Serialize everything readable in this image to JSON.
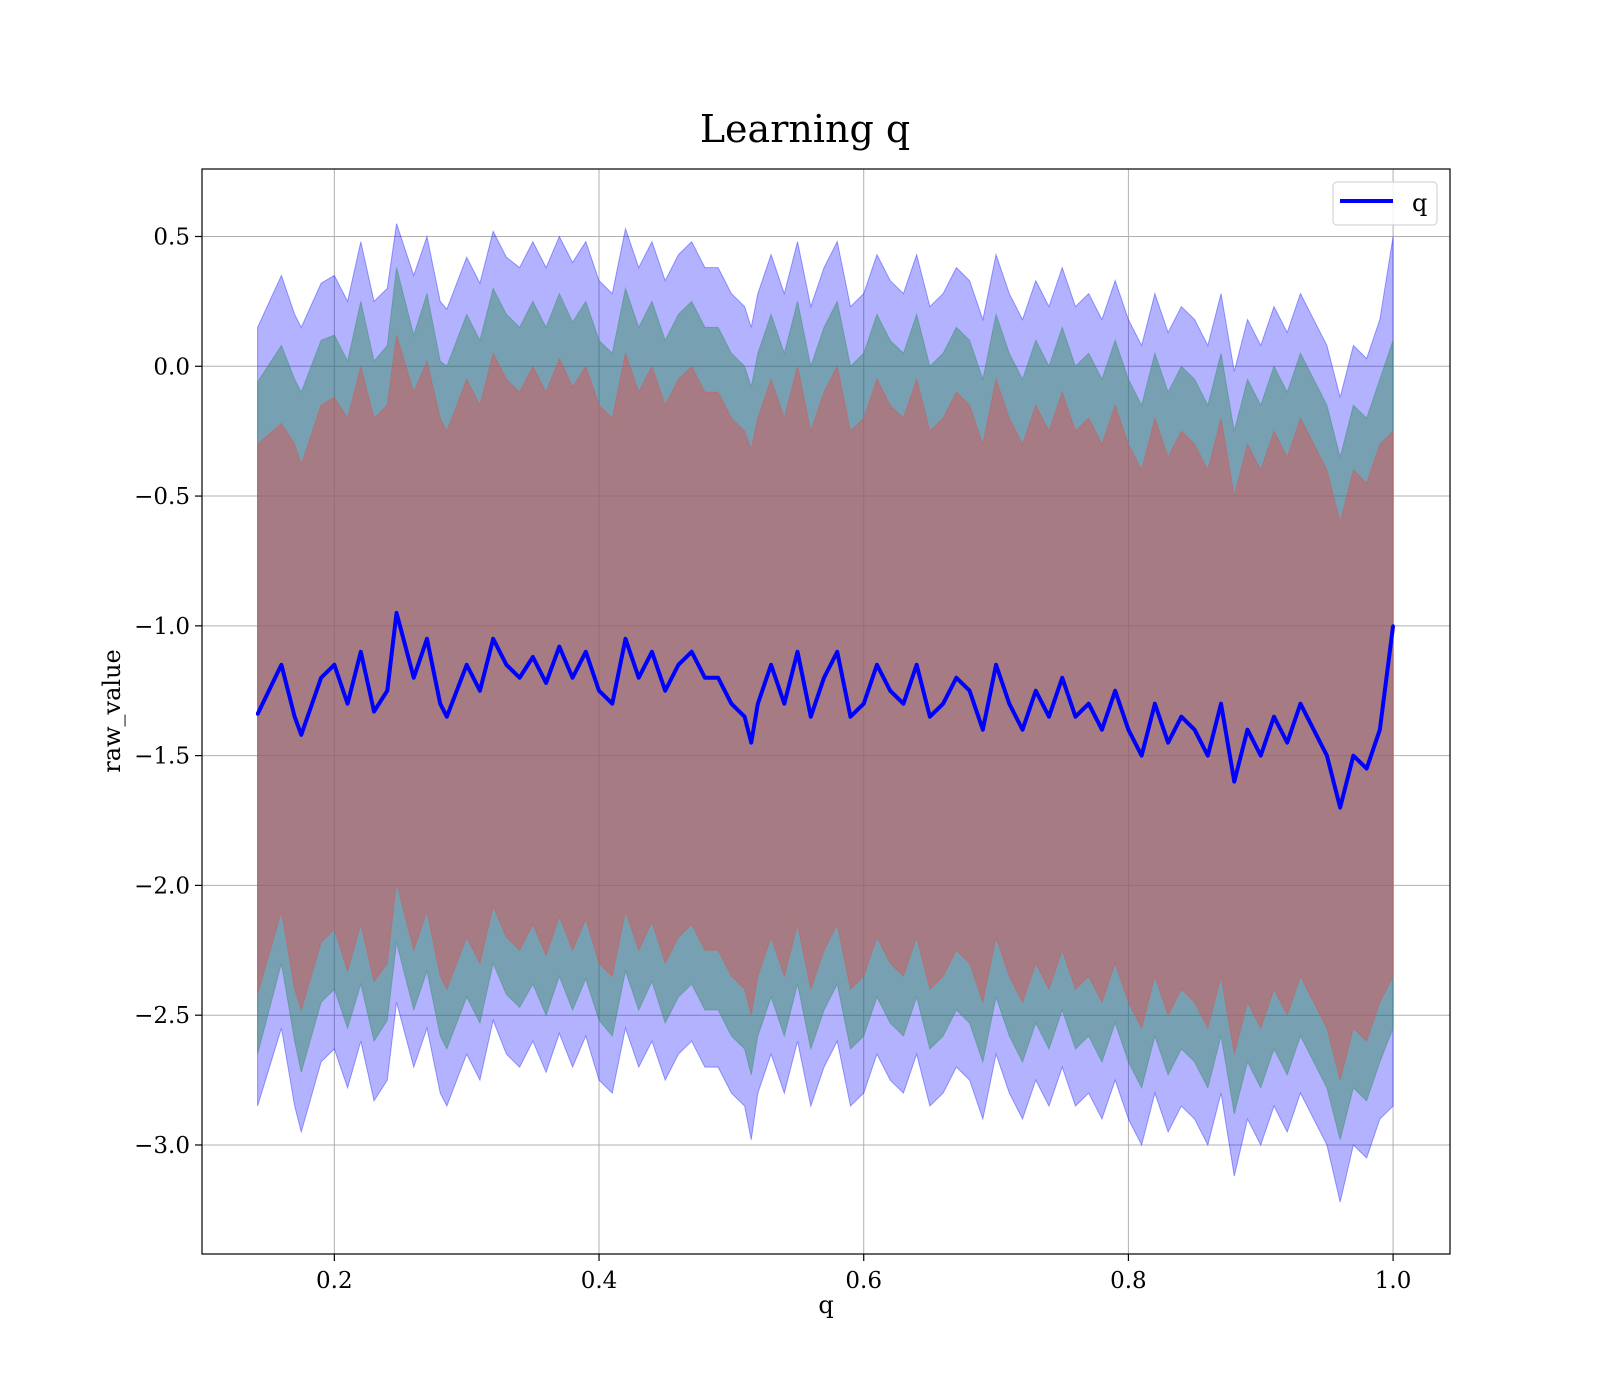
{
  "chart_data": {
    "type": "area",
    "title": "Learning q",
    "xlabel": "q",
    "ylabel": "raw_value",
    "xlim": [
      0.1,
      1.043
    ],
    "ylim": [
      -3.42,
      0.76
    ],
    "x_ticks": [
      0.2,
      0.4,
      0.6,
      0.8,
      1.0
    ],
    "x_tick_labels": [
      "0.2",
      "0.4",
      "0.6",
      "0.8",
      "1.0"
    ],
    "y_ticks": [
      0.5,
      0.0,
      -0.5,
      -1.0,
      -1.5,
      -2.0,
      -2.5,
      -3.0
    ],
    "y_tick_labels": [
      "0.5",
      "0.0",
      "−0.5",
      "−1.0",
      "−1.5",
      "−2.0",
      "−2.5",
      "−3.0"
    ],
    "grid": true,
    "legend": {
      "position": "top-right",
      "entries": [
        "q"
      ]
    },
    "line_color": "#0000ff",
    "band_colors": {
      "outer": "#0000ff",
      "middle": "#2e8b57",
      "inner": "#cd5c5c"
    },
    "series": [
      {
        "name": "q",
        "x": [
          0.142,
          0.16,
          0.17,
          0.175,
          0.19,
          0.2,
          0.21,
          0.22,
          0.23,
          0.24,
          0.247,
          0.26,
          0.27,
          0.28,
          0.285,
          0.3,
          0.31,
          0.32,
          0.33,
          0.34,
          0.35,
          0.36,
          0.37,
          0.38,
          0.39,
          0.4,
          0.41,
          0.42,
          0.43,
          0.44,
          0.45,
          0.46,
          0.47,
          0.48,
          0.49,
          0.5,
          0.51,
          0.515,
          0.52,
          0.53,
          0.54,
          0.55,
          0.56,
          0.57,
          0.58,
          0.59,
          0.6,
          0.61,
          0.62,
          0.63,
          0.64,
          0.65,
          0.66,
          0.67,
          0.68,
          0.69,
          0.7,
          0.71,
          0.72,
          0.73,
          0.74,
          0.75,
          0.76,
          0.77,
          0.78,
          0.79,
          0.8,
          0.81,
          0.82,
          0.83,
          0.84,
          0.85,
          0.86,
          0.87,
          0.88,
          0.89,
          0.9,
          0.91,
          0.92,
          0.93,
          0.94,
          0.95,
          0.96,
          0.97,
          0.98,
          0.99,
          1.0
        ],
        "mean": [
          -1.34,
          -1.15,
          -1.35,
          -1.42,
          -1.2,
          -1.15,
          -1.3,
          -1.1,
          -1.33,
          -1.25,
          -0.95,
          -1.2,
          -1.05,
          -1.3,
          -1.35,
          -1.15,
          -1.25,
          -1.05,
          -1.15,
          -1.2,
          -1.12,
          -1.22,
          -1.08,
          -1.2,
          -1.1,
          -1.25,
          -1.3,
          -1.05,
          -1.2,
          -1.1,
          -1.25,
          -1.15,
          -1.1,
          -1.2,
          -1.2,
          -1.3,
          -1.35,
          -1.45,
          -1.3,
          -1.15,
          -1.3,
          -1.1,
          -1.35,
          -1.2,
          -1.1,
          -1.35,
          -1.3,
          -1.15,
          -1.25,
          -1.3,
          -1.15,
          -1.35,
          -1.3,
          -1.2,
          -1.25,
          -1.4,
          -1.15,
          -1.3,
          -1.4,
          -1.25,
          -1.35,
          -1.2,
          -1.35,
          -1.3,
          -1.4,
          -1.25,
          -1.4,
          -1.5,
          -1.3,
          -1.45,
          -1.35,
          -1.4,
          -1.5,
          -1.3,
          -1.6,
          -1.4,
          -1.5,
          -1.35,
          -1.45,
          -1.3,
          -1.4,
          -1.5,
          -1.7,
          -1.5,
          -1.55,
          -1.4,
          -1.0
        ],
        "inner_upper": [
          -0.3,
          -0.22,
          -0.3,
          -0.38,
          -0.15,
          -0.12,
          -0.2,
          0.0,
          -0.2,
          -0.15,
          0.12,
          -0.1,
          0.02,
          -0.2,
          -0.25,
          -0.05,
          -0.15,
          0.05,
          -0.05,
          -0.1,
          0.0,
          -0.1,
          0.03,
          -0.08,
          0.0,
          -0.15,
          -0.2,
          0.05,
          -0.1,
          0.0,
          -0.15,
          -0.05,
          0.0,
          -0.1,
          -0.1,
          -0.2,
          -0.25,
          -0.32,
          -0.2,
          -0.05,
          -0.2,
          0.0,
          -0.25,
          -0.1,
          0.0,
          -0.25,
          -0.2,
          -0.05,
          -0.15,
          -0.2,
          -0.05,
          -0.25,
          -0.2,
          -0.1,
          -0.15,
          -0.3,
          -0.05,
          -0.2,
          -0.3,
          -0.15,
          -0.25,
          -0.1,
          -0.25,
          -0.2,
          -0.3,
          -0.15,
          -0.3,
          -0.4,
          -0.2,
          -0.35,
          -0.25,
          -0.3,
          -0.4,
          -0.2,
          -0.5,
          -0.3,
          -0.4,
          -0.25,
          -0.35,
          -0.2,
          -0.3,
          -0.4,
          -0.6,
          -0.4,
          -0.45,
          -0.3,
          -0.25
        ],
        "inner_lower": [
          -2.42,
          -2.1,
          -2.4,
          -2.48,
          -2.22,
          -2.17,
          -2.33,
          -2.15,
          -2.37,
          -2.3,
          -1.99,
          -2.25,
          -2.1,
          -2.35,
          -2.4,
          -2.2,
          -2.3,
          -2.08,
          -2.2,
          -2.25,
          -2.15,
          -2.27,
          -2.12,
          -2.25,
          -2.13,
          -2.3,
          -2.35,
          -2.1,
          -2.25,
          -2.14,
          -2.3,
          -2.2,
          -2.15,
          -2.25,
          -2.25,
          -2.35,
          -2.4,
          -2.5,
          -2.35,
          -2.2,
          -2.35,
          -2.15,
          -2.4,
          -2.25,
          -2.15,
          -2.4,
          -2.35,
          -2.2,
          -2.3,
          -2.35,
          -2.2,
          -2.4,
          -2.35,
          -2.25,
          -2.3,
          -2.45,
          -2.2,
          -2.35,
          -2.45,
          -2.3,
          -2.4,
          -2.25,
          -2.4,
          -2.35,
          -2.45,
          -2.3,
          -2.45,
          -2.55,
          -2.35,
          -2.5,
          -2.4,
          -2.45,
          -2.55,
          -2.35,
          -2.65,
          -2.45,
          -2.55,
          -2.4,
          -2.5,
          -2.35,
          -2.45,
          -2.55,
          -2.75,
          -2.55,
          -2.6,
          -2.45,
          -2.35
        ],
        "middle_upper": [
          -0.06,
          0.08,
          -0.05,
          -0.1,
          0.1,
          0.12,
          0.02,
          0.25,
          0.02,
          0.08,
          0.38,
          0.12,
          0.28,
          0.02,
          0.0,
          0.2,
          0.1,
          0.3,
          0.2,
          0.15,
          0.25,
          0.15,
          0.28,
          0.17,
          0.25,
          0.1,
          0.05,
          0.3,
          0.15,
          0.25,
          0.1,
          0.2,
          0.25,
          0.15,
          0.15,
          0.05,
          0.0,
          -0.08,
          0.05,
          0.2,
          0.05,
          0.25,
          0.0,
          0.15,
          0.25,
          0.0,
          0.05,
          0.2,
          0.1,
          0.05,
          0.2,
          0.0,
          0.05,
          0.15,
          0.1,
          -0.05,
          0.2,
          0.05,
          -0.05,
          0.1,
          0.0,
          0.15,
          0.0,
          0.05,
          -0.05,
          0.1,
          -0.05,
          -0.15,
          0.05,
          -0.1,
          0.0,
          -0.05,
          -0.15,
          0.05,
          -0.25,
          -0.05,
          -0.15,
          0.0,
          -0.1,
          0.05,
          -0.05,
          -0.15,
          -0.35,
          -0.15,
          -0.2,
          -0.05,
          0.1
        ],
        "middle_lower": [
          -2.65,
          -2.3,
          -2.6,
          -2.72,
          -2.45,
          -2.4,
          -2.55,
          -2.38,
          -2.6,
          -2.52,
          -2.22,
          -2.48,
          -2.33,
          -2.58,
          -2.63,
          -2.43,
          -2.53,
          -2.3,
          -2.42,
          -2.47,
          -2.38,
          -2.5,
          -2.35,
          -2.48,
          -2.36,
          -2.52,
          -2.58,
          -2.33,
          -2.48,
          -2.37,
          -2.53,
          -2.43,
          -2.38,
          -2.48,
          -2.48,
          -2.58,
          -2.63,
          -2.73,
          -2.58,
          -2.43,
          -2.58,
          -2.38,
          -2.63,
          -2.48,
          -2.38,
          -2.63,
          -2.58,
          -2.43,
          -2.53,
          -2.58,
          -2.43,
          -2.63,
          -2.58,
          -2.48,
          -2.53,
          -2.68,
          -2.43,
          -2.58,
          -2.68,
          -2.53,
          -2.63,
          -2.48,
          -2.63,
          -2.58,
          -2.68,
          -2.53,
          -2.68,
          -2.78,
          -2.58,
          -2.73,
          -2.63,
          -2.68,
          -2.78,
          -2.58,
          -2.88,
          -2.68,
          -2.78,
          -2.63,
          -2.73,
          -2.58,
          -2.68,
          -2.78,
          -2.98,
          -2.78,
          -2.83,
          -2.68,
          -2.55
        ],
        "outer_upper": [
          0.15,
          0.35,
          0.2,
          0.15,
          0.32,
          0.35,
          0.25,
          0.48,
          0.25,
          0.3,
          0.55,
          0.35,
          0.5,
          0.25,
          0.22,
          0.42,
          0.32,
          0.52,
          0.42,
          0.38,
          0.48,
          0.38,
          0.5,
          0.4,
          0.48,
          0.33,
          0.28,
          0.53,
          0.38,
          0.48,
          0.33,
          0.43,
          0.48,
          0.38,
          0.38,
          0.28,
          0.23,
          0.15,
          0.28,
          0.43,
          0.28,
          0.48,
          0.23,
          0.38,
          0.48,
          0.23,
          0.28,
          0.43,
          0.33,
          0.28,
          0.43,
          0.23,
          0.28,
          0.38,
          0.33,
          0.18,
          0.43,
          0.28,
          0.18,
          0.33,
          0.23,
          0.38,
          0.23,
          0.28,
          0.18,
          0.33,
          0.18,
          0.08,
          0.28,
          0.13,
          0.23,
          0.18,
          0.08,
          0.28,
          -0.02,
          0.18,
          0.08,
          0.23,
          0.13,
          0.28,
          0.18,
          0.08,
          -0.12,
          0.08,
          0.03,
          0.18,
          0.5
        ],
        "outer_lower": [
          -2.85,
          -2.55,
          -2.85,
          -2.95,
          -2.68,
          -2.63,
          -2.78,
          -2.6,
          -2.83,
          -2.75,
          -2.45,
          -2.7,
          -2.55,
          -2.8,
          -2.85,
          -2.65,
          -2.75,
          -2.52,
          -2.65,
          -2.7,
          -2.6,
          -2.72,
          -2.57,
          -2.7,
          -2.58,
          -2.75,
          -2.8,
          -2.55,
          -2.7,
          -2.6,
          -2.75,
          -2.65,
          -2.6,
          -2.7,
          -2.7,
          -2.8,
          -2.85,
          -2.98,
          -2.8,
          -2.65,
          -2.8,
          -2.6,
          -2.85,
          -2.7,
          -2.6,
          -2.85,
          -2.8,
          -2.65,
          -2.75,
          -2.8,
          -2.65,
          -2.85,
          -2.8,
          -2.7,
          -2.75,
          -2.9,
          -2.65,
          -2.8,
          -2.9,
          -2.75,
          -2.85,
          -2.7,
          -2.85,
          -2.8,
          -2.9,
          -2.75,
          -2.9,
          -3.0,
          -2.8,
          -2.95,
          -2.85,
          -2.9,
          -3.0,
          -2.8,
          -3.12,
          -2.9,
          -3.0,
          -2.85,
          -2.95,
          -2.8,
          -2.9,
          -3.0,
          -3.22,
          -3.0,
          -3.05,
          -2.9,
          -2.85
        ]
      }
    ]
  }
}
